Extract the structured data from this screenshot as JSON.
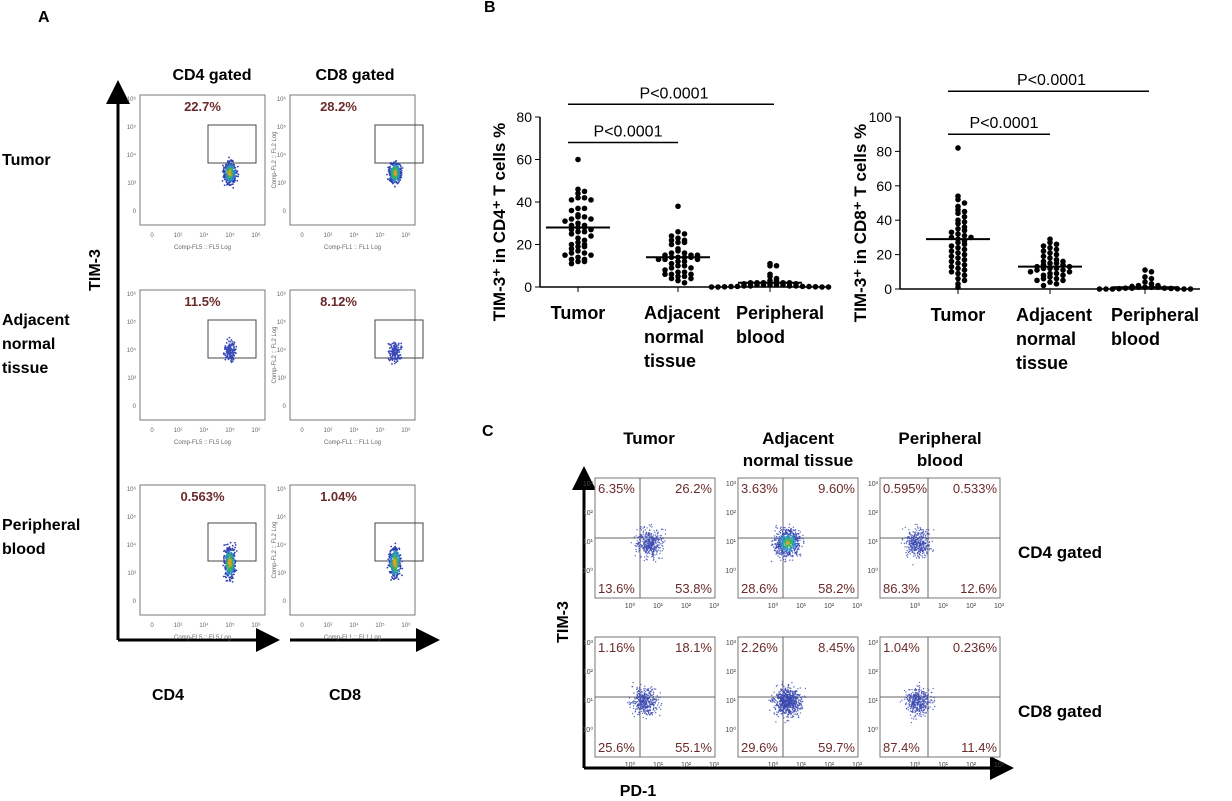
{
  "panel_labels": {
    "a": "A",
    "b": "B",
    "c": "C"
  },
  "panel_a": {
    "columns": [
      "CD4 gated",
      "CD8 gated"
    ],
    "rows": [
      {
        "label_lines": [
          "Tumor"
        ]
      },
      {
        "label_lines": [
          "Adjacent",
          "normal",
          "tissue"
        ]
      },
      {
        "label_lines": [
          "Peripheral",
          "blood"
        ]
      }
    ],
    "y_axis_label": "TIM-3",
    "x_axis_labels": [
      "CD4",
      "CD8"
    ],
    "plot_x_titles": [
      "Comp-FL5 :: FL5 Log",
      "Comp-FL1 :: FL1 Log"
    ],
    "plot_y_titles": [
      "",
      "Comp-FL2 :: FL2 Log"
    ],
    "x_ticks": [
      "0",
      "10²",
      "10⁴",
      "10⁵",
      "10⁶"
    ],
    "y_ticks": [
      "0",
      "10³",
      "10⁴",
      "10⁵",
      "10⁶"
    ],
    "percentages": [
      [
        "22.7%",
        "28.2%"
      ],
      [
        "11.5%",
        "8.12%"
      ],
      [
        "0.563%",
        "1.04%"
      ]
    ],
    "percent_color": "#6b2a2a"
  },
  "chart_data": [
    {
      "type": "scatter",
      "ylabel": "TIM-3⁺ in CD4⁺ T cells %",
      "ylim": [
        0,
        80
      ],
      "yticks": [
        "0",
        "20",
        "40",
        "60",
        "80"
      ],
      "categories": [
        [
          "Tumor"
        ],
        [
          "Adjacent",
          "normal",
          "tissue"
        ],
        [
          "Peripheral",
          "blood"
        ]
      ],
      "values": [
        [
          60,
          46,
          45,
          44,
          42,
          42,
          41,
          41,
          37,
          37,
          36,
          34,
          33,
          33,
          32,
          32,
          31,
          30,
          29,
          29,
          28,
          28,
          27,
          27,
          26,
          26,
          25,
          24,
          23,
          22,
          21,
          20,
          20,
          19,
          19,
          18,
          17,
          16,
          16,
          15,
          15,
          14,
          13,
          13,
          12,
          12,
          11
        ],
        [
          38,
          26,
          25,
          24,
          23,
          22,
          22,
          21,
          21,
          20,
          18,
          17,
          16,
          16,
          15,
          15,
          15,
          14,
          14,
          14,
          14,
          13,
          13,
          13,
          12,
          12,
          11,
          10,
          10,
          9,
          9,
          8,
          7,
          7,
          6,
          6,
          6,
          5,
          5,
          4,
          4,
          3,
          2
        ],
        [
          11,
          10,
          10,
          6,
          5,
          4,
          3,
          3,
          2,
          2,
          2,
          2,
          2,
          1.5,
          1.5,
          1,
          1,
          1,
          1,
          1,
          0.5,
          0.5,
          0.5,
          0.5,
          0.3,
          0.3,
          0.2,
          0.2,
          0.1,
          0.1,
          0,
          0,
          0,
          0
        ]
      ],
      "means": [
        28,
        14,
        2
      ],
      "annotations": [
        {
          "text": "P<0.0001",
          "from": 0,
          "to": 1,
          "level": 68
        },
        {
          "text": "P<0.0001",
          "from": 0,
          "to": 2,
          "level": 86
        }
      ]
    },
    {
      "type": "scatter",
      "ylabel": "TIM-3⁺ in CD8⁺ T cells %",
      "ylim": [
        0,
        100
      ],
      "yticks": [
        "0",
        "20",
        "40",
        "60",
        "80",
        "100"
      ],
      "categories": [
        [
          "Tumor"
        ],
        [
          "Adjacent",
          "normal",
          "tissue"
        ],
        [
          "Peripheral",
          "blood"
        ]
      ],
      "values": [
        [
          82,
          54,
          52,
          50,
          48,
          46,
          45,
          44,
          42,
          40,
          39,
          38,
          36,
          35,
          34,
          33,
          32,
          31,
          30,
          30,
          29,
          28,
          27,
          26,
          25,
          24,
          23,
          22,
          21,
          20,
          19,
          18,
          17,
          16,
          15,
          14,
          13,
          12,
          11,
          10,
          9,
          8,
          6,
          5,
          3,
          1
        ],
        [
          29,
          27,
          26,
          25,
          24,
          23,
          22,
          21,
          20,
          19,
          18,
          17,
          16,
          16,
          15,
          15,
          14,
          14,
          13,
          13,
          12,
          12,
          12,
          11,
          11,
          10,
          10,
          9,
          9,
          8,
          8,
          7,
          6,
          6,
          5,
          5,
          4,
          3,
          2
        ],
        [
          11,
          10,
          7,
          6,
          4,
          3,
          2,
          2,
          1.5,
          1,
          1,
          1,
          1,
          0.5,
          0.5,
          0.5,
          0.3,
          0.2,
          0.1,
          0,
          0,
          0,
          0,
          0
        ]
      ],
      "means": [
        29,
        13,
        1
      ],
      "annotations": [
        {
          "text": "P<0.0001",
          "from": 0,
          "to": 1,
          "level": 90
        },
        {
          "text": "P<0.0001",
          "from": 0,
          "to": 2,
          "level": 115
        }
      ]
    }
  ],
  "panel_c": {
    "columns": [
      [
        "Tumor"
      ],
      [
        "Adjacent",
        "normal tissue"
      ],
      [
        "Peripheral",
        "blood"
      ]
    ],
    "rows": [
      "CD4 gated",
      "CD8 gated"
    ],
    "y_axis_label": "TIM-3",
    "x_axis_label": "PD-1",
    "axis_ticks": [
      "10⁰",
      "10¹",
      "10²",
      "10³"
    ],
    "quadrants": [
      [
        [
          "6.35%",
          "26.2%",
          "13.6%",
          "53.8%"
        ],
        [
          "3.63%",
          "9.60%",
          "28.6%",
          "58.2%"
        ],
        [
          "0.595%",
          "0.533%",
          "86.3%",
          "12.6%"
        ]
      ],
      [
        [
          "1.16%",
          "18.1%",
          "25.6%",
          "55.1%"
        ],
        [
          "2.26%",
          "8.45%",
          "29.6%",
          "59.7%"
        ],
        [
          "1.04%",
          "0.236%",
          "87.4%",
          "11.4%"
        ]
      ]
    ]
  }
}
